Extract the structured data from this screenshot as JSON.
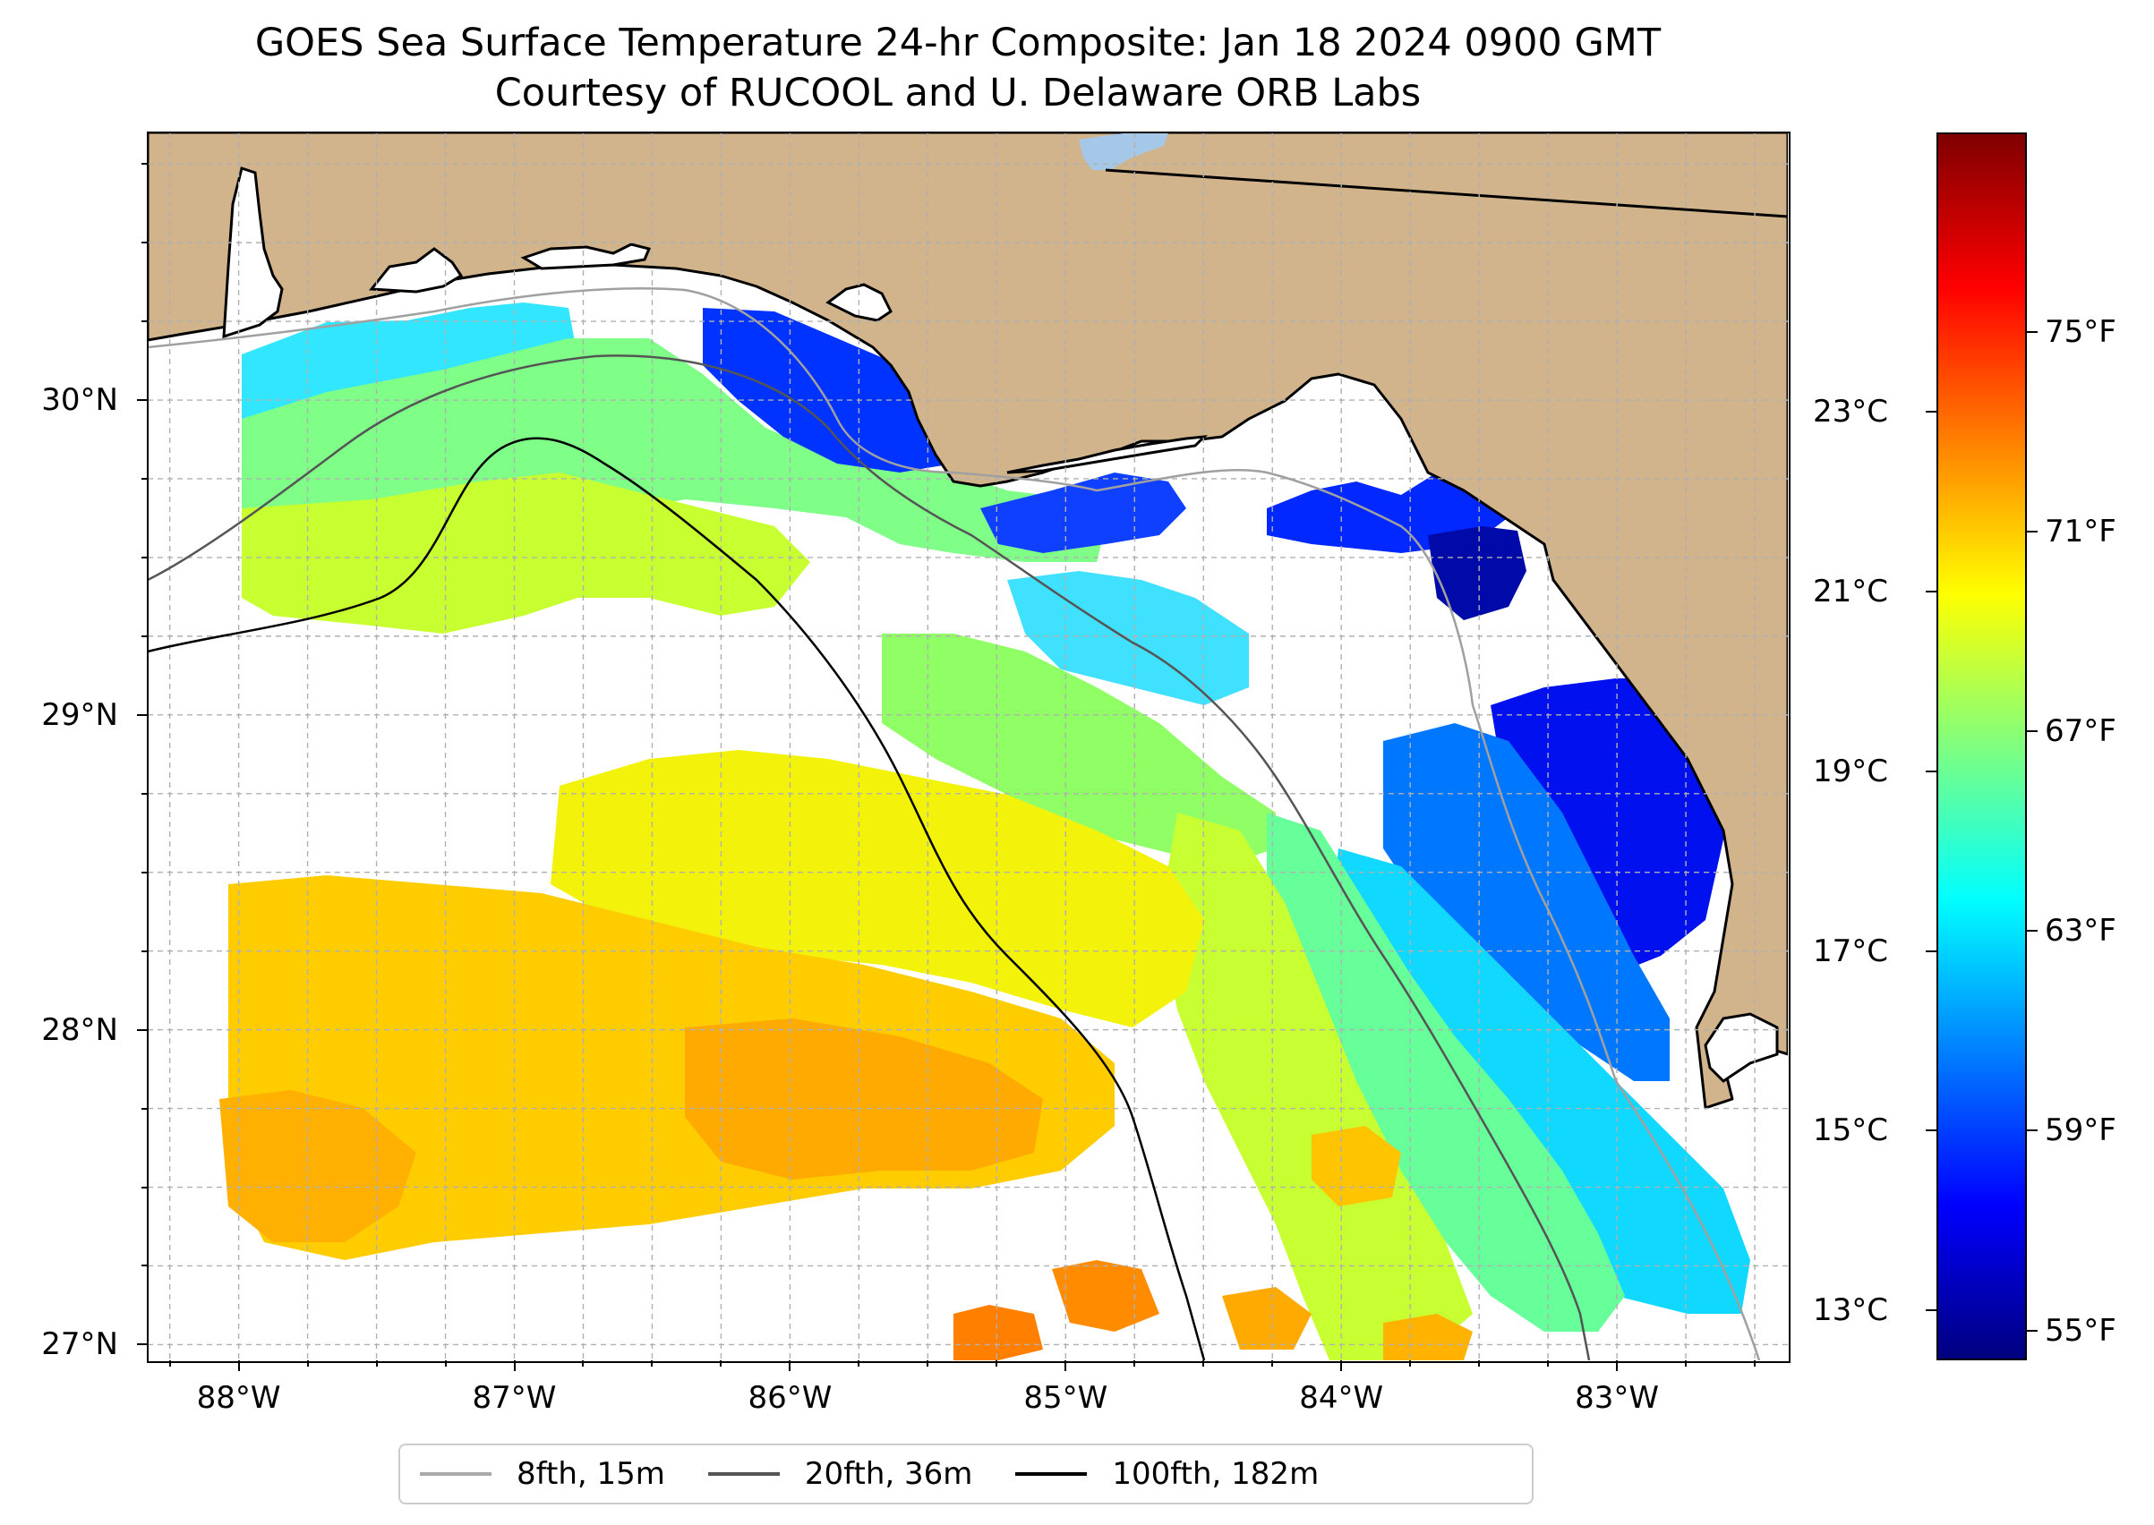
{
  "title": {
    "line1": "GOES Sea Surface Temperature 24-hr Composite: Jan 18 2024 0900 GMT",
    "line2": "Courtesy of RUCOOL and U. Delaware ORB Labs"
  },
  "map": {
    "lon_range": [
      -88.33,
      -82.38
    ],
    "lat_range": [
      26.95,
      30.85
    ],
    "land_color": "#d2b48c",
    "ocean_nodata_color": "#ffffff",
    "lake_color": "#a6c8e8",
    "gridlines": true,
    "lat_ticks": [
      {
        "value": 30,
        "label": "30°N"
      },
      {
        "value": 29,
        "label": "29°N"
      },
      {
        "value": 28,
        "label": "28°N"
      },
      {
        "value": 27,
        "label": "27°N"
      }
    ],
    "lon_ticks": [
      {
        "value": -88,
        "label": "88°W"
      },
      {
        "value": -87,
        "label": "87°W"
      },
      {
        "value": -86,
        "label": "86°W"
      },
      {
        "value": -85,
        "label": "85°W"
      },
      {
        "value": -84,
        "label": "84°W"
      },
      {
        "value": -83,
        "label": "83°W"
      }
    ]
  },
  "colorbar": {
    "colormap": "jet",
    "celsius_ticks": [
      {
        "value": 23,
        "label": "23°C"
      },
      {
        "value": 21,
        "label": "21°C"
      },
      {
        "value": 19,
        "label": "19°C"
      },
      {
        "value": 17,
        "label": "17°C"
      },
      {
        "value": 15,
        "label": "15°C"
      },
      {
        "value": 13,
        "label": "13°C"
      }
    ],
    "fahrenheit_ticks": [
      {
        "value": 75,
        "label": "75°F"
      },
      {
        "value": 71,
        "label": "71°F"
      },
      {
        "value": 67,
        "label": "67°F"
      },
      {
        "value": 63,
        "label": "63°F"
      },
      {
        "value": 59,
        "label": "59°F"
      },
      {
        "value": 55,
        "label": "55°F"
      }
    ],
    "range_f": [
      54.4,
      79.0
    ]
  },
  "legend": {
    "items": [
      {
        "label": "8fth, 15m",
        "color": "#aaaaaa"
      },
      {
        "label": "20fth, 36m",
        "color": "#555555"
      },
      {
        "label": "100fth, 182m",
        "color": "#000000"
      }
    ]
  }
}
